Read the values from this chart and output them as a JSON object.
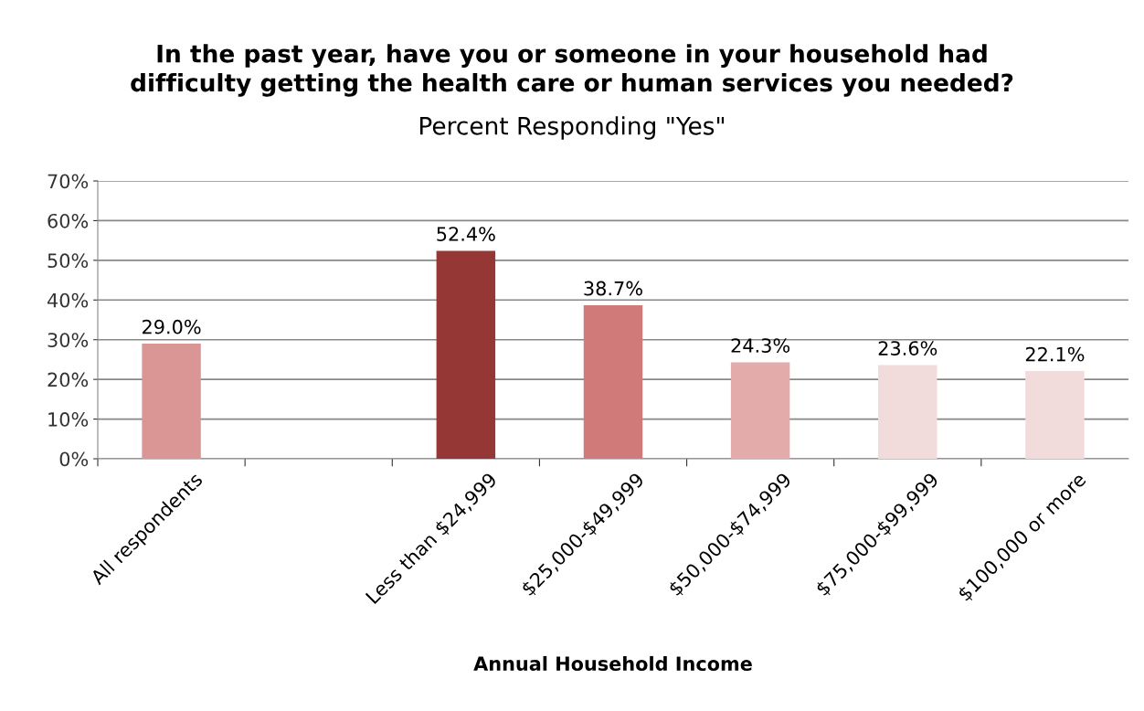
{
  "chart_data": {
    "type": "bar",
    "title": "In the past year, have you or someone in your household had\ndifficulty getting the health care or human services you needed?",
    "subtitle": "Percent Responding \"Yes\"",
    "xlabel": "Annual Household Income",
    "categories": [
      "All respondents",
      null,
      "Less than $24,999",
      "$25,000-$49,999",
      "$50,000-$74,999",
      "$75,000-$99,999",
      "$100,000 or more"
    ],
    "values": [
      29.0,
      null,
      52.4,
      38.7,
      24.3,
      23.6,
      22.1
    ],
    "colors": [
      "#d99694",
      "#d99694",
      "#953735",
      "#d07a79",
      "#e4abab",
      "#f2dcdb",
      "#f2dcdb"
    ],
    "value_labels": [
      "29.0%",
      null,
      "52.4%",
      "38.7%",
      "24.3%",
      "23.6%",
      "22.1%"
    ],
    "ylim": [
      0,
      70
    ],
    "yticks": [
      {
        "value": 0,
        "label": "0%"
      },
      {
        "value": 10,
        "label": "10%"
      },
      {
        "value": 20,
        "label": "20%"
      },
      {
        "value": 30,
        "label": "30%"
      },
      {
        "value": 40,
        "label": "40%"
      },
      {
        "value": 50,
        "label": "50%"
      },
      {
        "value": 60,
        "label": "60%"
      },
      {
        "value": 70,
        "label": "70%"
      }
    ],
    "grid": "y",
    "legend": false
  }
}
